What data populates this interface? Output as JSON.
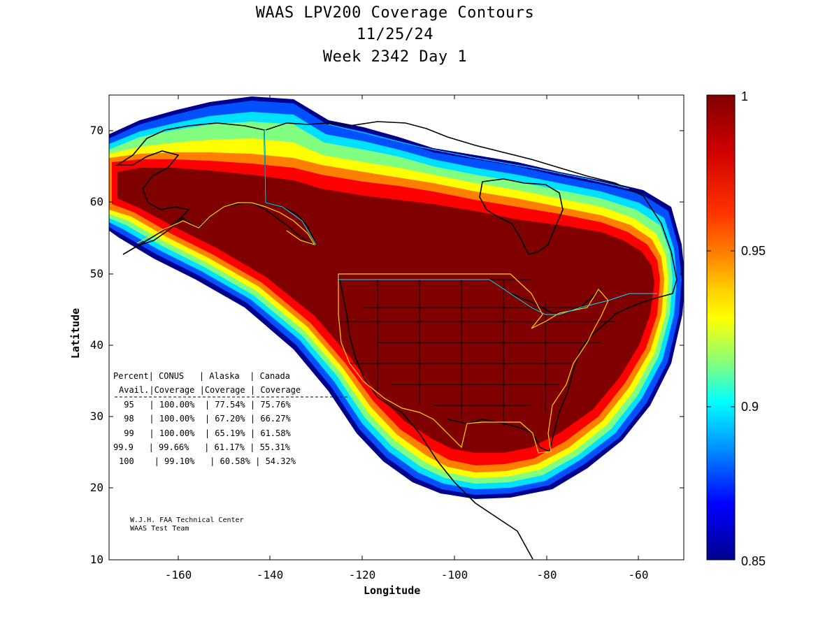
{
  "title": {
    "line1": "WAAS LPV200 Coverage Contours",
    "line2": "11/25/24",
    "line3": "Week 2342 Day 1"
  },
  "axes": {
    "xlabel": "Longitude",
    "ylabel": "Latitude",
    "xticks": [
      "-160",
      "-140",
      "-120",
      "-100",
      "-80",
      "-60"
    ],
    "yticks": [
      "70",
      "60",
      "50",
      "40",
      "30",
      "20",
      "10"
    ],
    "xlim": [
      -175,
      -50
    ],
    "ylim": [
      10,
      75
    ]
  },
  "colorbar": {
    "ticks": [
      "1",
      "0.95",
      "0.9",
      "0.85"
    ],
    "range": [
      0.85,
      1.0
    ]
  },
  "table": {
    "header1": [
      "Percent|",
      "CONUS",
      "| Alaska",
      "| Canada"
    ],
    "header2": [
      "Avail.|",
      "Coverage",
      "|Coverage",
      "| Coverage"
    ],
    "rows": [
      [
        "95",
        "100.00%",
        "77.54%",
        "75.76%"
      ],
      [
        "98",
        "100.00%",
        "67.20%",
        "66.27%"
      ],
      [
        "99",
        "100.00%",
        "65.19%",
        "61.58%"
      ],
      [
        "99.9",
        "99.66%",
        "61.17%",
        "55.31%"
      ],
      [
        "100",
        "99.10%",
        "60.58%",
        "54.32%"
      ]
    ]
  },
  "credit": {
    "line1": "W.J.H. FAA Technical Center",
    "line2": "WAAS Test Team"
  },
  "colors": {
    "dark_red": "#800000",
    "red": "#ff0000",
    "orange": "#ff8000",
    "yellow": "#ffff00",
    "cyan": "#00ffff",
    "blue": "#0000ff",
    "navy": "#00008f"
  }
}
